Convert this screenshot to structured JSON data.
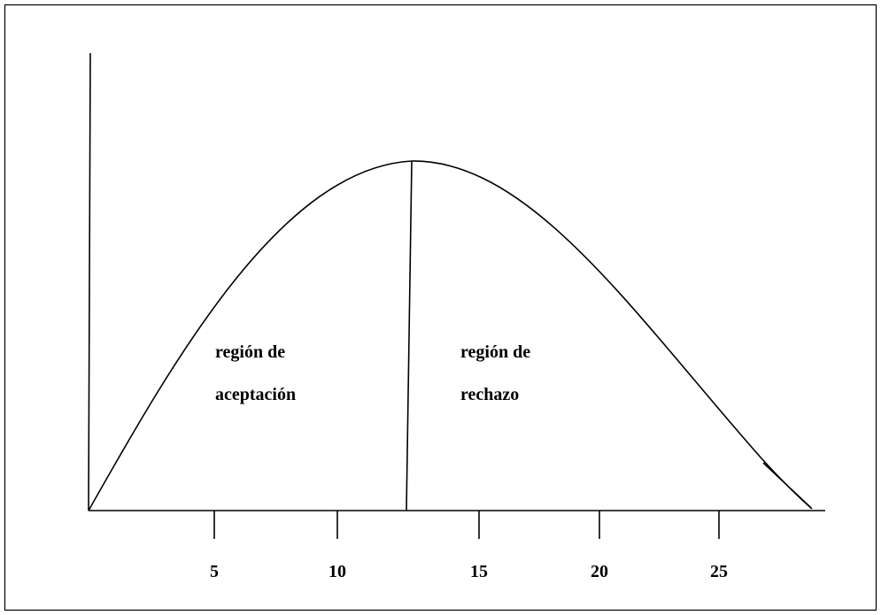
{
  "axis": {
    "ticks": [
      5,
      10,
      15,
      20,
      25
    ]
  },
  "regions": [
    {
      "lines": [
        "región de",
        "aceptación"
      ]
    },
    {
      "lines": [
        "región de",
        "rechazo"
      ]
    }
  ]
}
